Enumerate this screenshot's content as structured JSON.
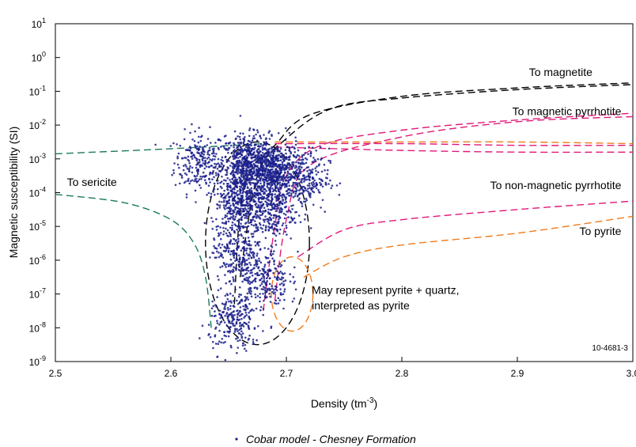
{
  "chart_data": {
    "type": "scatter",
    "xlabel": "Density (tm",
    "xlabel_sup": "-3",
    "xlabel_close": ")",
    "ylabel": "Magnetic susceptibility (SI)",
    "x_range": [
      2.5,
      3.0
    ],
    "y_range_log10": [
      -9,
      1
    ],
    "y_scale": "log",
    "grid": false,
    "x_ticks": [
      "2.5",
      "2.6",
      "2.7",
      "2.8",
      "2.9",
      "3.0"
    ],
    "y_ticks": [
      {
        "base": "10",
        "exp": "1",
        "log": 1
      },
      {
        "base": "10",
        "exp": "0",
        "log": 0
      },
      {
        "base": "10",
        "exp": "-1",
        "log": -1
      },
      {
        "base": "10",
        "exp": "-2",
        "log": -2
      },
      {
        "base": "10",
        "exp": "-3",
        "log": -3
      },
      {
        "base": "10",
        "exp": "-4",
        "log": -4
      },
      {
        "base": "10",
        "exp": "-5",
        "log": -5
      },
      {
        "base": "10",
        "exp": "-6",
        "log": -6
      },
      {
        "base": "10",
        "exp": "-7",
        "log": -7
      },
      {
        "base": "10",
        "exp": "-8",
        "log": -8
      },
      {
        "base": "10",
        "exp": "-9",
        "log": -9
      }
    ],
    "legend_position": "bottom-center",
    "series": [
      {
        "name": "Cobar model - Chesney Formation",
        "color": "#1a1f8a",
        "marker": "dot",
        "clusters": [
          {
            "x": 2.625,
            "y_log": -3.1,
            "count": 4
          },
          {
            "x": 2.665,
            "y_log": -3.2,
            "count": 10
          },
          {
            "x": 2.69,
            "y_log": -3.4,
            "count": 10
          },
          {
            "x": 2.715,
            "y_log": -3.6,
            "count": 4
          },
          {
            "x": 2.66,
            "y_log": -4.3,
            "count": 6
          },
          {
            "x": 2.685,
            "y_log": -4.6,
            "count": 4
          },
          {
            "x": 2.658,
            "y_log": -5.7,
            "count": 4
          },
          {
            "x": 2.68,
            "y_log": -6.6,
            "count": 4
          },
          {
            "x": 2.655,
            "y_log": -7.8,
            "count": 4
          }
        ]
      }
    ],
    "curves": [
      {
        "label": "To magnetite",
        "color": "#000000",
        "points": [
          [
            2.655,
            -7.3
          ],
          [
            2.66,
            -4.5
          ],
          [
            2.67,
            -3.3
          ],
          [
            2.69,
            -2.6
          ],
          [
            2.72,
            -1.7
          ],
          [
            2.8,
            -1.15
          ],
          [
            2.9,
            -0.9
          ],
          [
            3.0,
            -0.75
          ]
        ]
      },
      {
        "label": "",
        "color": "#000000",
        "points": [
          [
            2.66,
            -6.5
          ],
          [
            2.675,
            -3.5
          ],
          [
            2.7,
            -2.4
          ],
          [
            2.74,
            -1.5
          ],
          [
            2.8,
            -1.2
          ],
          [
            2.9,
            -0.95
          ],
          [
            3.0,
            -0.8
          ]
        ]
      },
      {
        "label": "To magnetic pyrrhotite",
        "color": "#e0187a",
        "points": [
          [
            2.68,
            -7.5
          ],
          [
            2.69,
            -5.0
          ],
          [
            2.7,
            -3.5
          ],
          [
            2.73,
            -2.6
          ],
          [
            2.8,
            -2.15
          ],
          [
            2.9,
            -1.85
          ],
          [
            3.0,
            -1.65
          ]
        ]
      },
      {
        "label": "",
        "color": "#e0187a",
        "points": [
          [
            2.69,
            -7.2
          ],
          [
            2.7,
            -4.8
          ],
          [
            2.72,
            -3.2
          ],
          [
            2.8,
            -2.35
          ],
          [
            2.9,
            -1.9
          ],
          [
            3.0,
            -1.75
          ]
        ]
      },
      {
        "label": "",
        "color": "#e0187a",
        "points": [
          [
            2.69,
            -2.55
          ],
          [
            2.8,
            -2.55
          ],
          [
            2.9,
            -2.6
          ],
          [
            3.0,
            -2.6
          ]
        ]
      },
      {
        "label": "",
        "color": "#e0187a",
        "points": [
          [
            2.69,
            -2.65
          ],
          [
            2.8,
            -2.75
          ],
          [
            2.9,
            -2.8
          ],
          [
            3.0,
            -2.8
          ]
        ]
      },
      {
        "label": "",
        "color": "#f07b1a",
        "points": [
          [
            2.69,
            -2.5
          ],
          [
            2.8,
            -2.5
          ],
          [
            2.9,
            -2.5
          ],
          [
            3.0,
            -2.55
          ]
        ]
      },
      {
        "label": "To non-magnetic pyrrhotite",
        "color": "#e0187a",
        "points": [
          [
            2.71,
            -5.9
          ],
          [
            2.75,
            -5.1
          ],
          [
            2.8,
            -4.8
          ],
          [
            2.9,
            -4.5
          ],
          [
            3.0,
            -4.25
          ]
        ]
      },
      {
        "label": "To pyrite",
        "color": "#f07b1a",
        "points": [
          [
            2.715,
            -6.5
          ],
          [
            2.75,
            -5.9
          ],
          [
            2.8,
            -5.55
          ],
          [
            2.9,
            -5.2
          ],
          [
            3.0,
            -4.7
          ]
        ]
      },
      {
        "label": "To sericite",
        "color": "#1a7a5a",
        "points": [
          [
            2.5,
            -4.05
          ],
          [
            2.56,
            -4.3
          ],
          [
            2.6,
            -4.8
          ],
          [
            2.62,
            -5.5
          ],
          [
            2.63,
            -6.5
          ],
          [
            2.635,
            -8.0
          ]
        ]
      },
      {
        "label": "",
        "color": "#1a7a5a",
        "points": [
          [
            2.5,
            -2.85
          ],
          [
            2.6,
            -2.7
          ],
          [
            2.68,
            -2.55
          ]
        ]
      }
    ],
    "envelopes": [
      {
        "color": "#000000",
        "cx": 2.675,
        "cy_log": -5.5,
        "rx": 0.045,
        "ry_log": 3.0,
        "angle": 0
      },
      {
        "color": "#f07b1a",
        "cx": 2.705,
        "cy_log": -7.0,
        "rx": 0.018,
        "ry_log": 1.1,
        "angle": 0
      }
    ],
    "annotations": [
      {
        "text": "To magnetite",
        "x": 2.965,
        "y_log": -0.55,
        "anchor": "end"
      },
      {
        "text": "To magnetic pyrrhotite",
        "x": 2.99,
        "y_log": -1.7,
        "anchor": "end"
      },
      {
        "text": "To sericite",
        "x": 2.51,
        "y_log": -3.8,
        "anchor": "start"
      },
      {
        "text": "To non-magnetic pyrrhotite",
        "x": 2.99,
        "y_log": -3.9,
        "anchor": "end"
      },
      {
        "text": "To pyrite",
        "x": 2.99,
        "y_log": -5.25,
        "anchor": "end"
      },
      {
        "text": "May represent pyrite + quartz,",
        "x": 2.722,
        "y_log": -7.0,
        "anchor": "start"
      },
      {
        "text": "interpreted as pyrite",
        "x": 2.722,
        "y_log": -7.45,
        "anchor": "start"
      }
    ],
    "figure_code": "10-4681-3"
  }
}
